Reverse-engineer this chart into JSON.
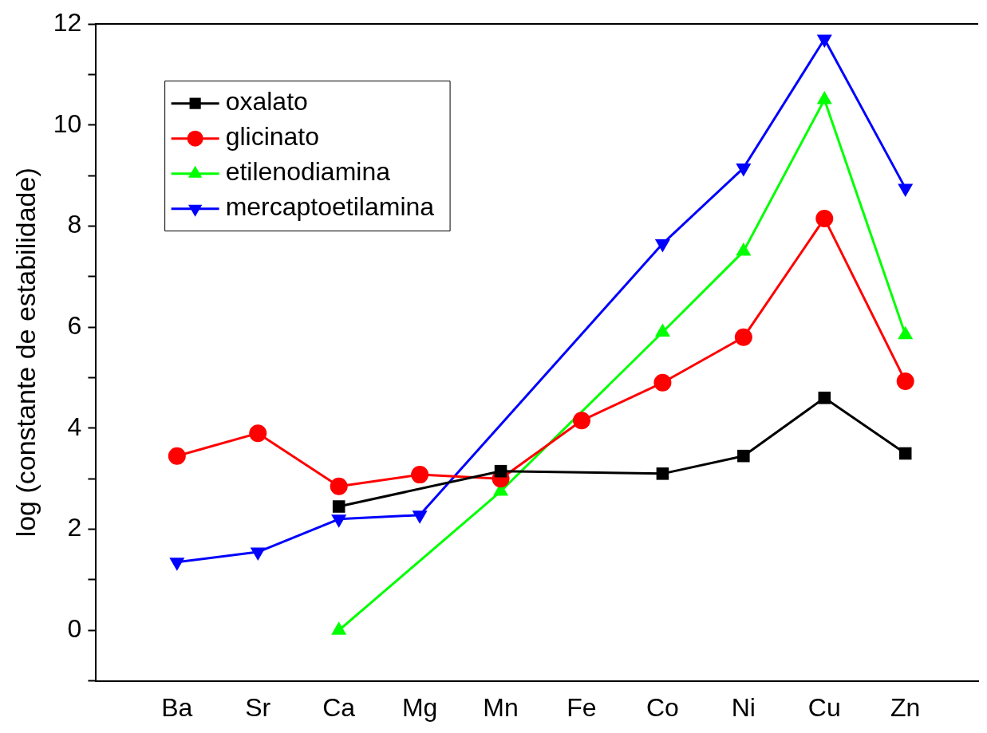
{
  "chart_data": {
    "type": "line",
    "ylabel": "log (constante de estabilidade)",
    "categories": [
      "Ba",
      "Sr",
      "Ca",
      "Mg",
      "Mn",
      "Fe",
      "Co",
      "Ni",
      "Cu",
      "Zn"
    ],
    "ylim": [
      -1,
      12
    ],
    "yticks": [
      {
        "value": -1,
        "label": null
      },
      0,
      {
        "value": 1,
        "label": null
      },
      2,
      {
        "value": 3,
        "label": null
      },
      4,
      {
        "value": 5,
        "label": null
      },
      6,
      {
        "value": 7,
        "label": null
      },
      8,
      {
        "value": 9,
        "label": null
      },
      10,
      {
        "value": 11,
        "label": null
      },
      12
    ],
    "grid": false,
    "legend": "top left",
    "series": [
      {
        "name": "oxalato",
        "color": "#000000",
        "marker": "square",
        "values": [
          null,
          null,
          2.45,
          null,
          3.15,
          null,
          3.1,
          3.45,
          4.6,
          3.5
        ]
      },
      {
        "name": "glicinato",
        "color": "#ff0000",
        "marker": "circle",
        "values": [
          3.45,
          3.9,
          2.85,
          3.08,
          3.0,
          4.15,
          4.9,
          5.8,
          8.15,
          4.93
        ]
      },
      {
        "name": "etilenodiamina",
        "color": "#00ff00",
        "marker": "triangle",
        "values": [
          null,
          null,
          0.0,
          null,
          2.75,
          null,
          5.9,
          7.5,
          10.5,
          5.85
        ]
      },
      {
        "name": "mercaptoetilamina",
        "color": "#0000ff",
        "marker": "triangle-down",
        "values": [
          1.35,
          1.55,
          2.2,
          2.28,
          null,
          null,
          7.65,
          9.15,
          11.7,
          8.75
        ]
      }
    ]
  }
}
